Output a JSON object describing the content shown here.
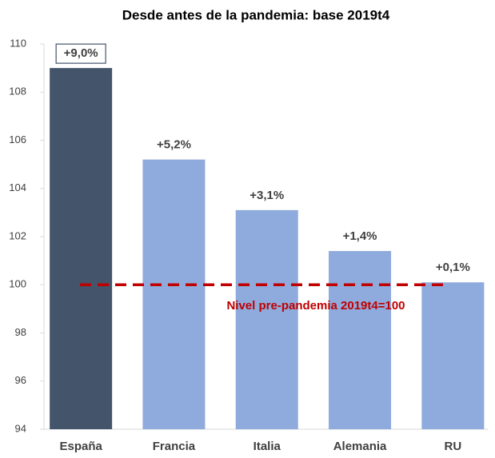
{
  "chart_data": {
    "type": "bar",
    "title": "Desde antes de la pandemia: base 2019t4",
    "categories": [
      "España",
      "Francia",
      "Italia",
      "Alemania",
      "RU"
    ],
    "values": [
      109.0,
      105.2,
      103.1,
      101.4,
      100.1
    ],
    "value_labels": [
      "+9,0%",
      "+5,2%",
      "+3,1%",
      "+1,4%",
      "+0,1%"
    ],
    "colors": [
      "#44546a",
      "#8faadc",
      "#8faadc",
      "#8faadc",
      "#8faadc"
    ],
    "ylim": [
      94,
      110
    ],
    "yticks": [
      94,
      96,
      98,
      100,
      102,
      104,
      106,
      108,
      110
    ],
    "reference_line": {
      "value": 100,
      "color": "#c00000",
      "label": "Nivel pre-pandemia 2019t4=100"
    }
  }
}
